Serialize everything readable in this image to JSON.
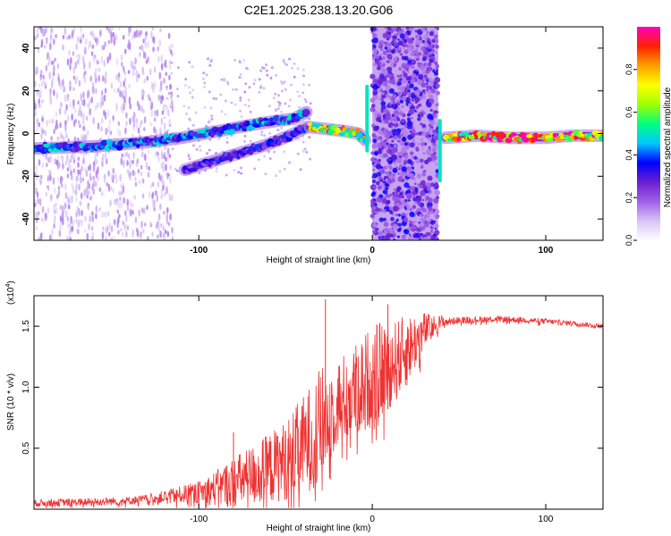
{
  "title": "C2E1.2025.238.13.20.G06",
  "chart_data": [
    {
      "type": "heatmap",
      "name": "spectrogram",
      "xlabel": "Height of straight line (km)",
      "ylabel": "Frequency (Hz)",
      "xlim": [
        -195,
        133
      ],
      "ylim": [
        -50,
        50
      ],
      "xticks": [
        -100,
        0,
        100
      ],
      "xtick_labels": [
        "-100",
        "0",
        "100"
      ],
      "yticks": [
        -40,
        -20,
        0,
        20,
        40
      ],
      "ytick_labels": [
        "-40",
        "-20",
        "0",
        "20",
        "40"
      ],
      "colorbar": {
        "label": "Normalized spectral amplitude",
        "range": [
          0.0,
          1.0
        ],
        "ticks": [
          0.0,
          0.2,
          0.4,
          0.6,
          0.8
        ],
        "tick_labels": [
          "0.0",
          "0.2",
          "0.4",
          "0.6",
          "0.8"
        ],
        "colors": [
          "#ffffff",
          "#d8c4f4",
          "#a060e8",
          "#6a1fd0",
          "#0000ff",
          "#00c8ff",
          "#00ff80",
          "#a0ff00",
          "#ffff00",
          "#ffa000",
          "#ff2000",
          "#ff00c0"
        ]
      },
      "ridges": [
        {
          "name": "main trace",
          "points": [
            [
              -195,
              -7
            ],
            [
              -160,
              -6
            ],
            [
              -130,
              -4
            ],
            [
              -110,
              -2
            ],
            [
              -90,
              1
            ],
            [
              -70,
              4
            ],
            [
              -55,
              6
            ],
            [
              -45,
              7
            ],
            [
              -38,
              10
            ]
          ],
          "amplitude": 0.45
        },
        {
          "name": "lower branch",
          "points": [
            [
              -108,
              -17
            ],
            [
              -80,
              -10
            ],
            [
              -60,
              -5
            ],
            [
              -45,
              0
            ],
            [
              -38,
              3
            ]
          ],
          "amplitude": 0.35
        },
        {
          "name": "near-zero segment",
          "points": [
            [
              -36,
              3
            ],
            [
              -25,
              2
            ],
            [
              -15,
              1
            ],
            [
              -8,
              0
            ],
            [
              -4,
              -3
            ]
          ],
          "amplitude": 0.8
        },
        {
          "name": "post-gap trace",
          "points": [
            [
              42,
              -2
            ],
            [
              60,
              -1
            ],
            [
              80,
              -2
            ],
            [
              100,
              -2
            ],
            [
              115,
              -1
            ],
            [
              133,
              -1
            ]
          ],
          "amplitude": 0.9
        }
      ],
      "noise_band": {
        "x_range": [
          0,
          38
        ],
        "amplitude": 0.3
      }
    },
    {
      "type": "line",
      "name": "snr",
      "xlabel": "Height of straight line (km)",
      "ylabel": "SNR (10 * v/v)",
      "y_multiplier": "(x10",
      "y_multiplier_exp": "4",
      "y_multiplier_close": ")",
      "xlim": [
        -195,
        133
      ],
      "ylim": [
        0,
        1.75
      ],
      "xticks": [
        -100,
        0,
        100
      ],
      "xtick_labels": [
        "-100",
        "0",
        "100"
      ],
      "yticks": [
        0.5,
        1.0,
        1.5
      ],
      "ytick_labels": [
        "0.5",
        "1.0",
        "1.5"
      ],
      "color": "#ee3333",
      "trend": [
        [
          -195,
          0.05
        ],
        [
          -160,
          0.06
        ],
        [
          -140,
          0.07
        ],
        [
          -120,
          0.1
        ],
        [
          -100,
          0.14
        ],
        [
          -90,
          0.17
        ],
        [
          -80,
          0.22
        ],
        [
          -70,
          0.27
        ],
        [
          -60,
          0.33
        ],
        [
          -50,
          0.4
        ],
        [
          -40,
          0.52
        ],
        [
          -35,
          0.6
        ],
        [
          -30,
          0.68
        ],
        [
          -25,
          0.78
        ],
        [
          -20,
          0.88
        ],
        [
          -15,
          0.92
        ],
        [
          -10,
          0.97
        ],
        [
          -5,
          1.03
        ],
        [
          0,
          1.1
        ],
        [
          5,
          1.14
        ],
        [
          10,
          1.18
        ],
        [
          15,
          1.23
        ],
        [
          20,
          1.3
        ],
        [
          25,
          1.38
        ],
        [
          30,
          1.46
        ],
        [
          35,
          1.5
        ],
        [
          40,
          1.53
        ],
        [
          50,
          1.55
        ],
        [
          70,
          1.56
        ],
        [
          90,
          1.55
        ],
        [
          110,
          1.53
        ],
        [
          133,
          1.5
        ]
      ],
      "noise_amp": [
        [
          -195,
          0.05
        ],
        [
          -130,
          0.06
        ],
        [
          -100,
          0.15
        ],
        [
          -80,
          0.35
        ],
        [
          -50,
          0.55
        ],
        [
          -30,
          0.8
        ],
        [
          -20,
          0.6
        ],
        [
          0,
          0.7
        ],
        [
          20,
          0.5
        ],
        [
          35,
          0.15
        ],
        [
          45,
          0.05
        ],
        [
          133,
          0.03
        ]
      ],
      "spikes": [
        [
          -27,
          1.72
        ],
        [
          9,
          1.68
        ],
        [
          -80,
          0.63
        ]
      ]
    }
  ]
}
